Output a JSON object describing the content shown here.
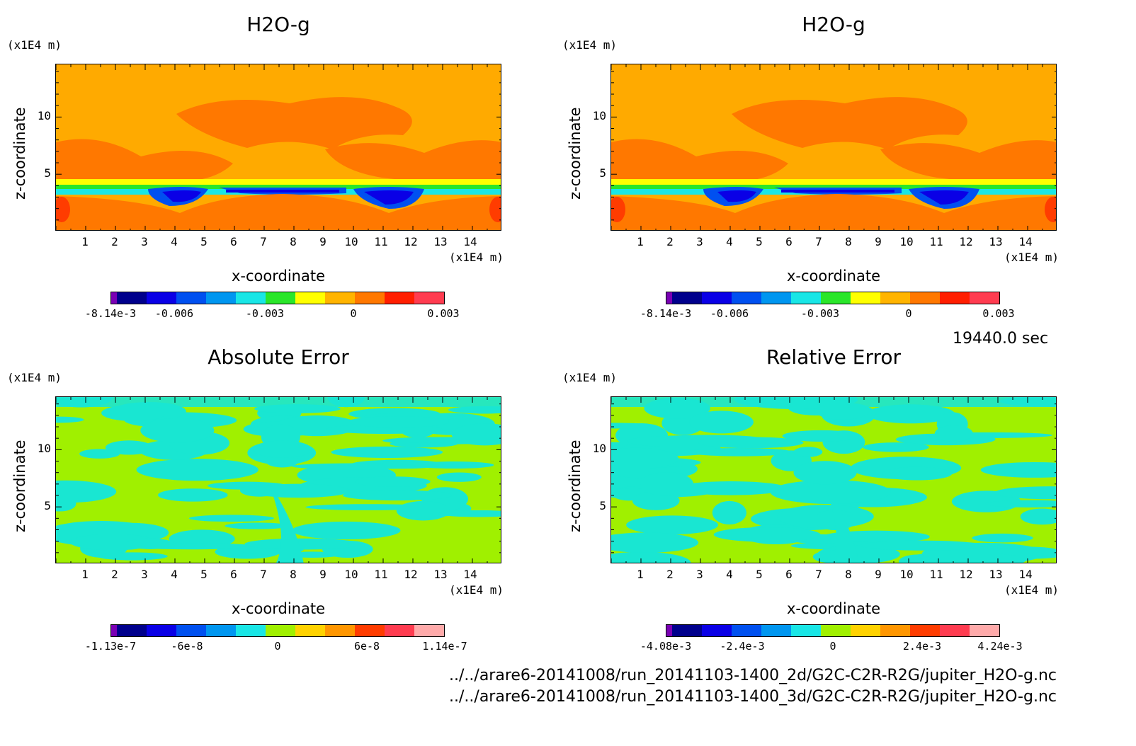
{
  "panels": [
    {
      "id": "p1",
      "title": "H2O-g",
      "y_unit": "(x1E4 m)",
      "x_unit": "(x1E4 m)",
      "ylabel": "z-coordinate",
      "xlabel": "x-coordinate",
      "xticks": [
        "1",
        "2",
        "3",
        "4",
        "5",
        "6",
        "7",
        "8",
        "9",
        "10",
        "11",
        "12",
        "13",
        "14"
      ],
      "yticks": [
        "10",
        "5"
      ],
      "colorbar": {
        "labels": [
          "-8.14e-3",
          "-0.006",
          "-0.003",
          "0",
          "0.003"
        ]
      }
    },
    {
      "id": "p2",
      "title": "H2O-g",
      "y_unit": "(x1E4 m)",
      "x_unit": "(x1E4 m)",
      "ylabel": "z-coordinate",
      "xlabel": "x-coordinate",
      "xticks": [
        "1",
        "2",
        "3",
        "4",
        "5",
        "6",
        "7",
        "8",
        "9",
        "10",
        "11",
        "12",
        "13",
        "14"
      ],
      "yticks": [
        "10",
        "5"
      ],
      "colorbar": {
        "labels": [
          "-8.14e-3",
          "-0.006",
          "-0.003",
          "0",
          "0.003"
        ]
      }
    },
    {
      "id": "p3",
      "title": "Absolute Error",
      "y_unit": "(x1E4 m)",
      "x_unit": "(x1E4 m)",
      "ylabel": "z-coordinate",
      "xlabel": "x-coordinate",
      "xticks": [
        "1",
        "2",
        "3",
        "4",
        "5",
        "6",
        "7",
        "8",
        "9",
        "10",
        "11",
        "12",
        "13",
        "14"
      ],
      "yticks": [
        "10",
        "5"
      ],
      "colorbar": {
        "labels": [
          "-1.13e-7",
          "-6e-8",
          "0",
          "6e-8",
          "1.14e-7"
        ]
      }
    },
    {
      "id": "p4",
      "title": "Relative Error",
      "y_unit": "(x1E4 m)",
      "x_unit": "(x1E4 m)",
      "ylabel": "z-coordinate",
      "xlabel": "x-coordinate",
      "xticks": [
        "1",
        "2",
        "3",
        "4",
        "5",
        "6",
        "7",
        "8",
        "9",
        "10",
        "11",
        "12",
        "13",
        "14"
      ],
      "yticks": [
        "10",
        "5"
      ],
      "colorbar": {
        "labels": [
          "-4.08e-3",
          "-2.4e-3",
          "0",
          "2.4e-3",
          "4.24e-3"
        ]
      }
    }
  ],
  "time_label": "19440.0 sec",
  "files": [
    "../../arare6-20141008/run_20141103-1400_2d/G2C-C2R-R2G/jupiter_H2O-g.nc",
    "../../arare6-20141008/run_20141103-1400_3d/G2C-C2R-R2G/jupiter_H2O-g.nc"
  ],
  "colors": {
    "cbar_top": [
      "#7a00b4",
      "#00008c",
      "#0a00e6",
      "#0050f0",
      "#0096f0",
      "#19e6e6",
      "#2ae62a",
      "#ffff00",
      "#ffb400",
      "#ff7800",
      "#ff1e00",
      "#ff3c50"
    ],
    "cbar_bottom": [
      "#7a00b4",
      "#00008c",
      "#0a00e6",
      "#0050f0",
      "#0096f0",
      "#19e6e6",
      "#a0f000",
      "#ffd200",
      "#ff9600",
      "#ff3c00",
      "#ff3c50",
      "#ffaaaa"
    ],
    "field_main": "#ffaa00",
    "field_dark": "#ff7800",
    "field_red": "#ff3c00",
    "err_green": "#a0f000",
    "err_cyan": "#19e6d2"
  },
  "chart_data": [
    {
      "type": "heatmap",
      "title": "H2O-g",
      "xlabel": "x-coordinate",
      "ylabel": "z-coordinate",
      "xlim": [
        0,
        15
      ],
      "ylim": [
        0,
        14.6
      ],
      "colorbar_range": [
        -0.00814,
        0.003
      ]
    },
    {
      "type": "heatmap",
      "title": "H2O-g",
      "xlabel": "x-coordinate",
      "ylabel": "z-coordinate",
      "xlim": [
        0,
        15
      ],
      "ylim": [
        0,
        14.6
      ],
      "colorbar_range": [
        -0.00814,
        0.003
      ]
    },
    {
      "type": "heatmap",
      "title": "Absolute Error",
      "xlabel": "x-coordinate",
      "ylabel": "z-coordinate",
      "xlim": [
        0,
        15
      ],
      "ylim": [
        0,
        14.6
      ],
      "colorbar_range": [
        -1.13e-07,
        1.14e-07
      ]
    },
    {
      "type": "heatmap",
      "title": "Relative Error",
      "xlabel": "x-coordinate",
      "ylabel": "z-coordinate",
      "xlim": [
        0,
        15
      ],
      "ylim": [
        0,
        14.6
      ],
      "colorbar_range": [
        -0.00408,
        0.00424
      ]
    }
  ]
}
